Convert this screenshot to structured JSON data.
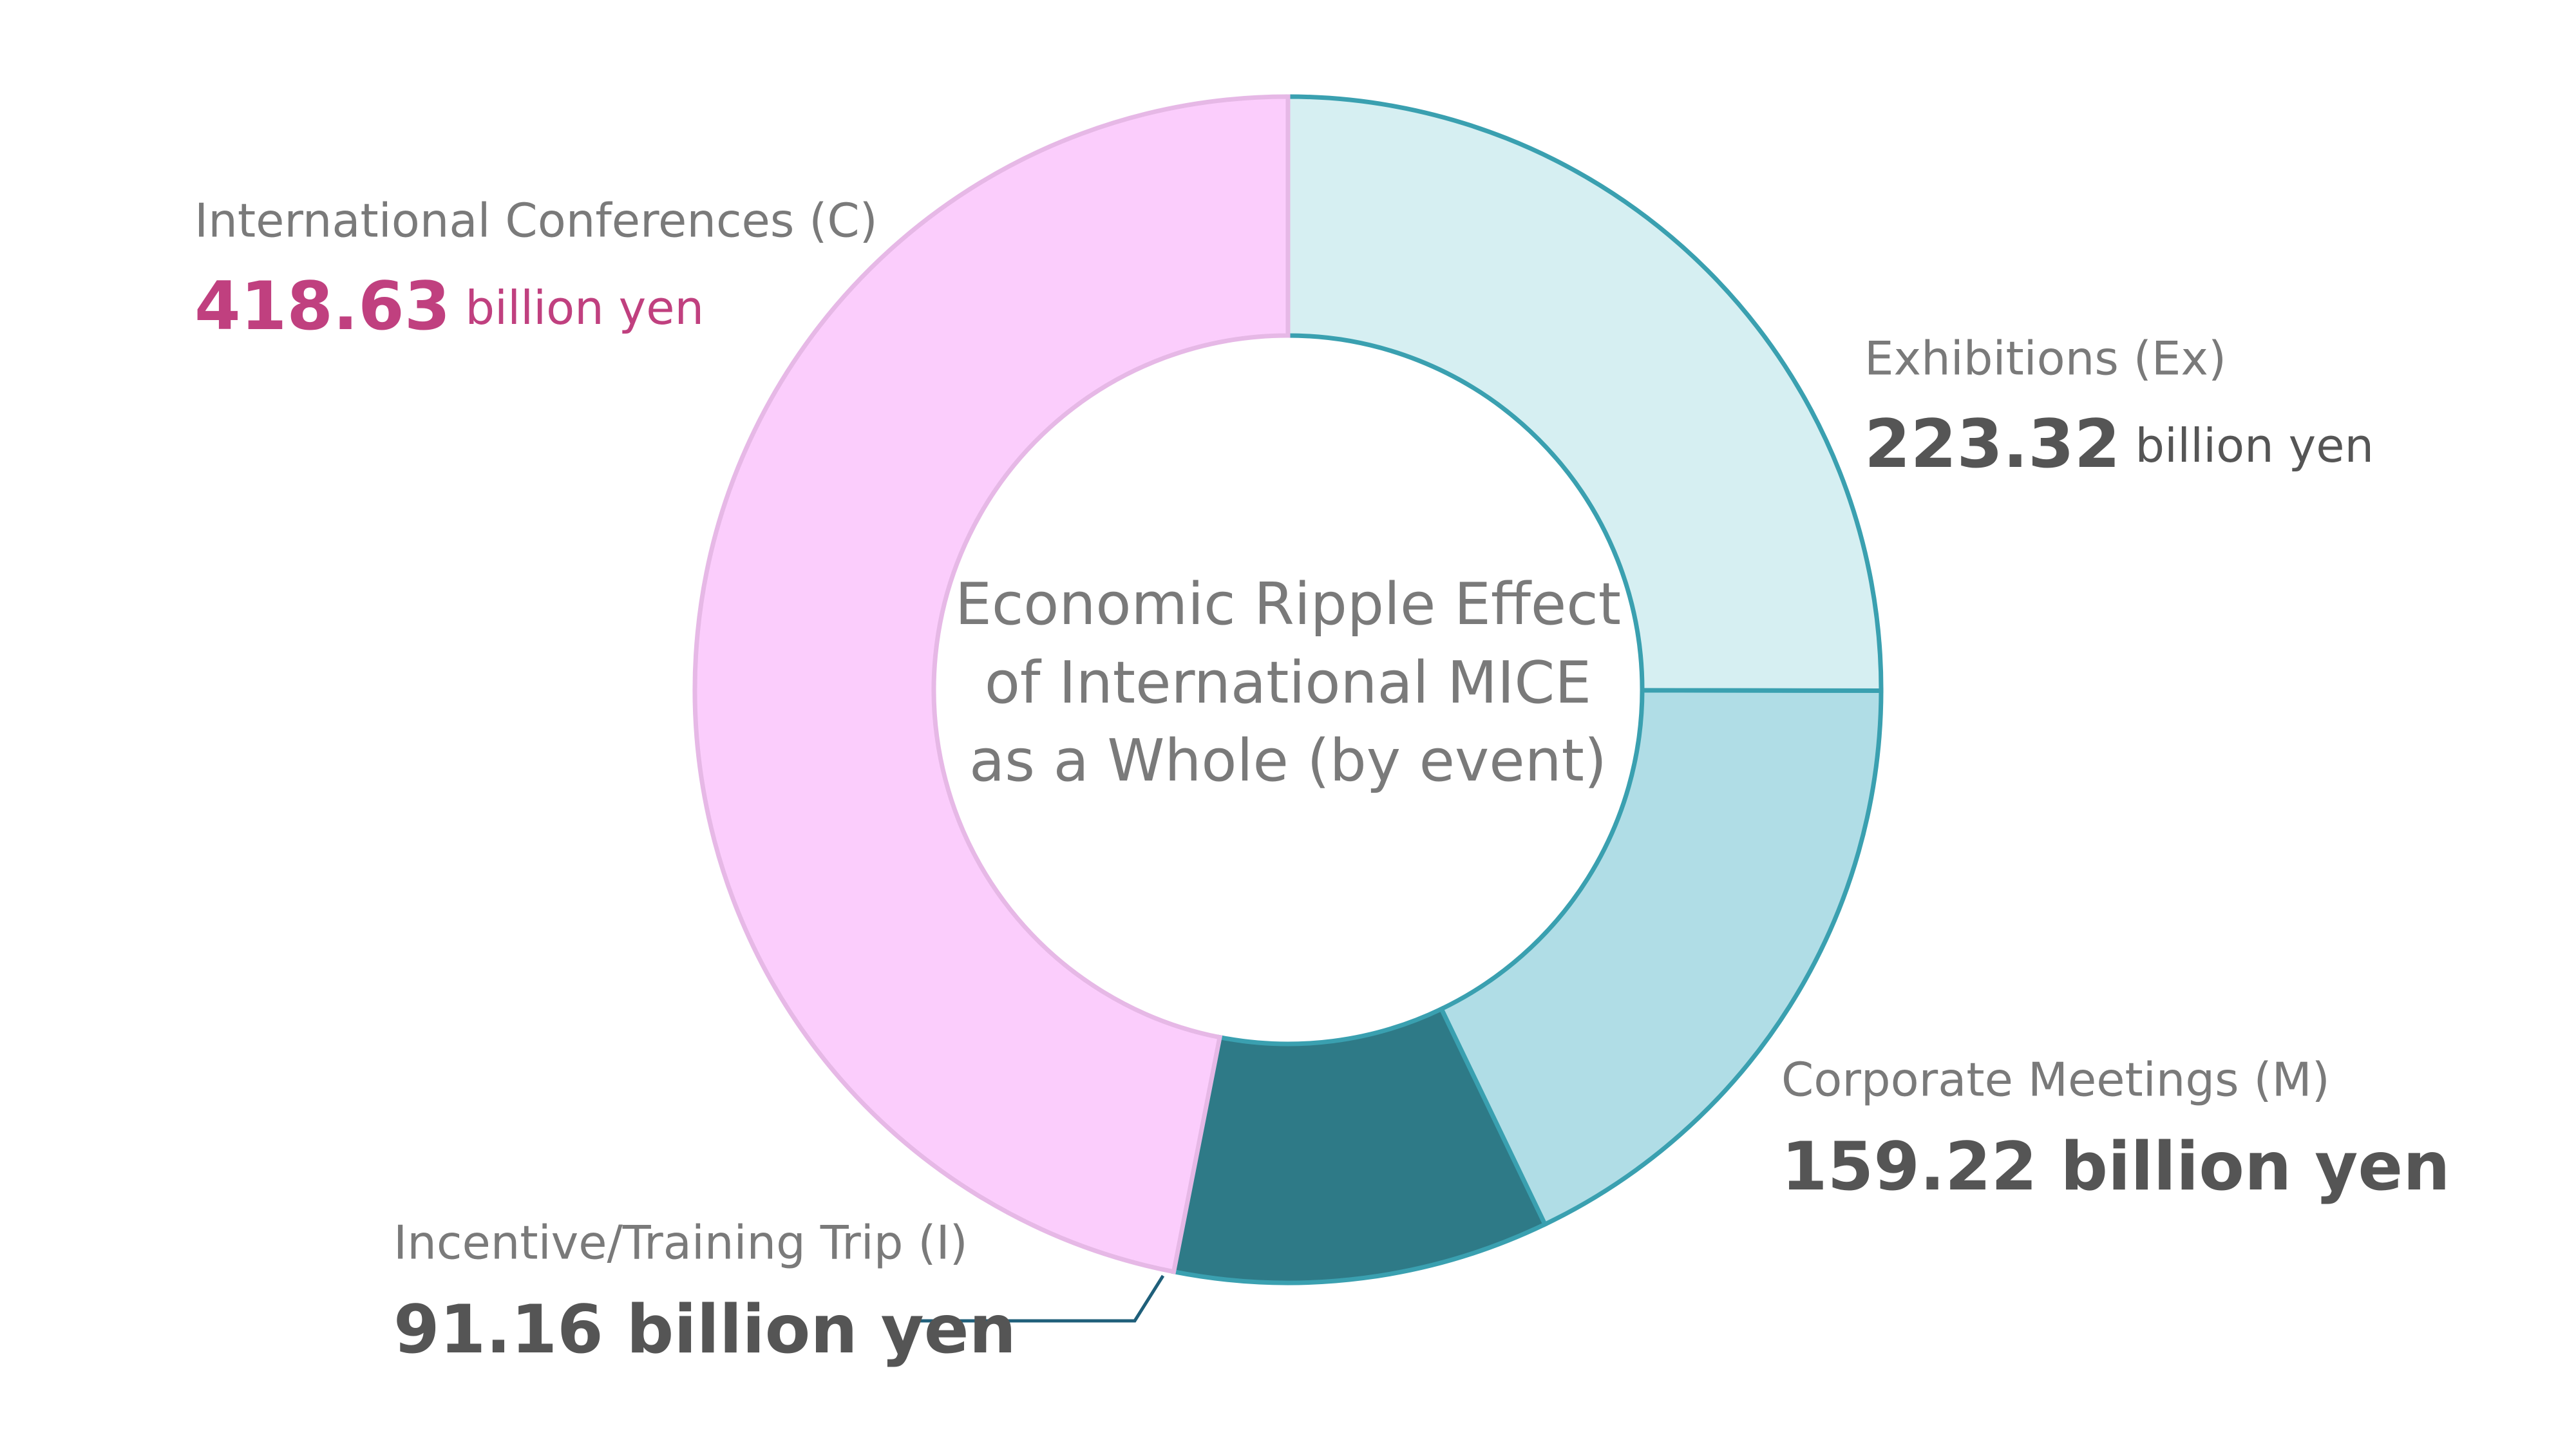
{
  "chart_data": {
    "type": "donut",
    "title_lines": [
      "Economic Ripple Effect",
      "of International MICE",
      "as a Whole (by event)"
    ],
    "categories": [
      "Exhibitions (Ex)",
      "Corporate Meetings (M)",
      "Incentive/Training Trip (I)",
      "International Conferences (C)"
    ],
    "values": [
      223.32,
      159.22,
      91.16,
      418.63
    ],
    "value_labels": [
      "223.32 billion yen",
      "159.22 billion yen",
      "91.16 billion yen",
      "418.63 billion yen"
    ],
    "colors": [
      "#d6eff2",
      "#b0dde6",
      "#2e7a87",
      "#fbcdfc"
    ],
    "edge_colors": [
      "#3aa0b0",
      "#3aa0b0",
      "#3aa0b0",
      "#e6b8e6"
    ]
  }
}
